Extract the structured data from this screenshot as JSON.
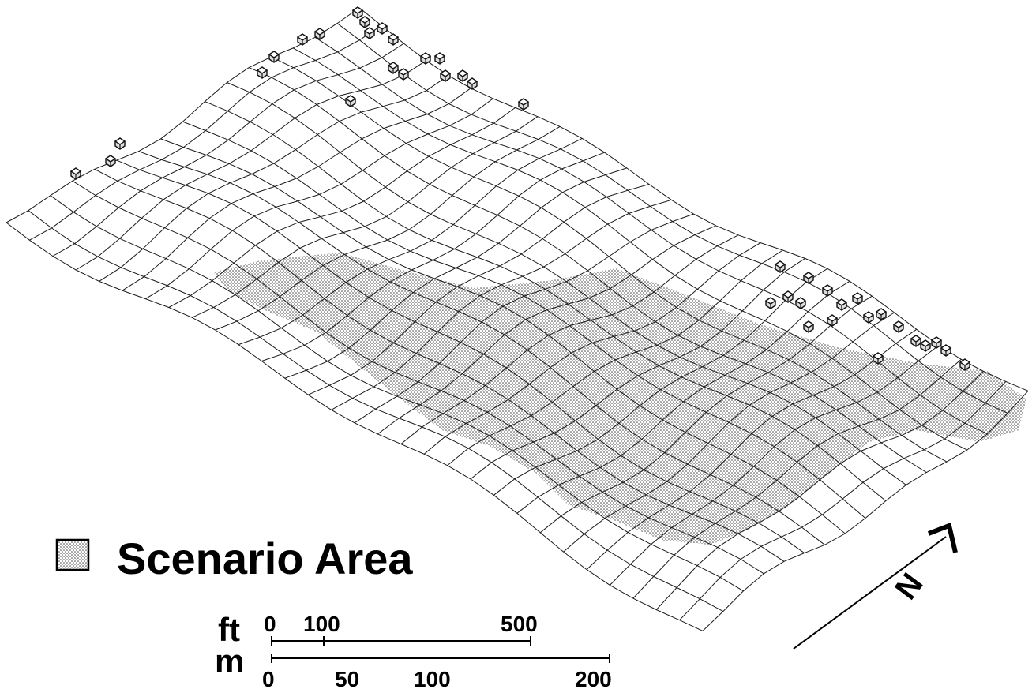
{
  "legend": {
    "label": "Scenario Area",
    "pattern": "stippled"
  },
  "scale_bar": {
    "feet": {
      "unit": "ft",
      "ticks": [
        "0",
        "100",
        "500"
      ]
    },
    "meters": {
      "unit": "m",
      "ticks": [
        "0",
        "50",
        "100",
        "200"
      ]
    }
  },
  "north_arrow": {
    "letter": "N"
  },
  "colors": {
    "ink": "#1a1a1a",
    "background": "#ffffff",
    "stipple": "#444444"
  }
}
